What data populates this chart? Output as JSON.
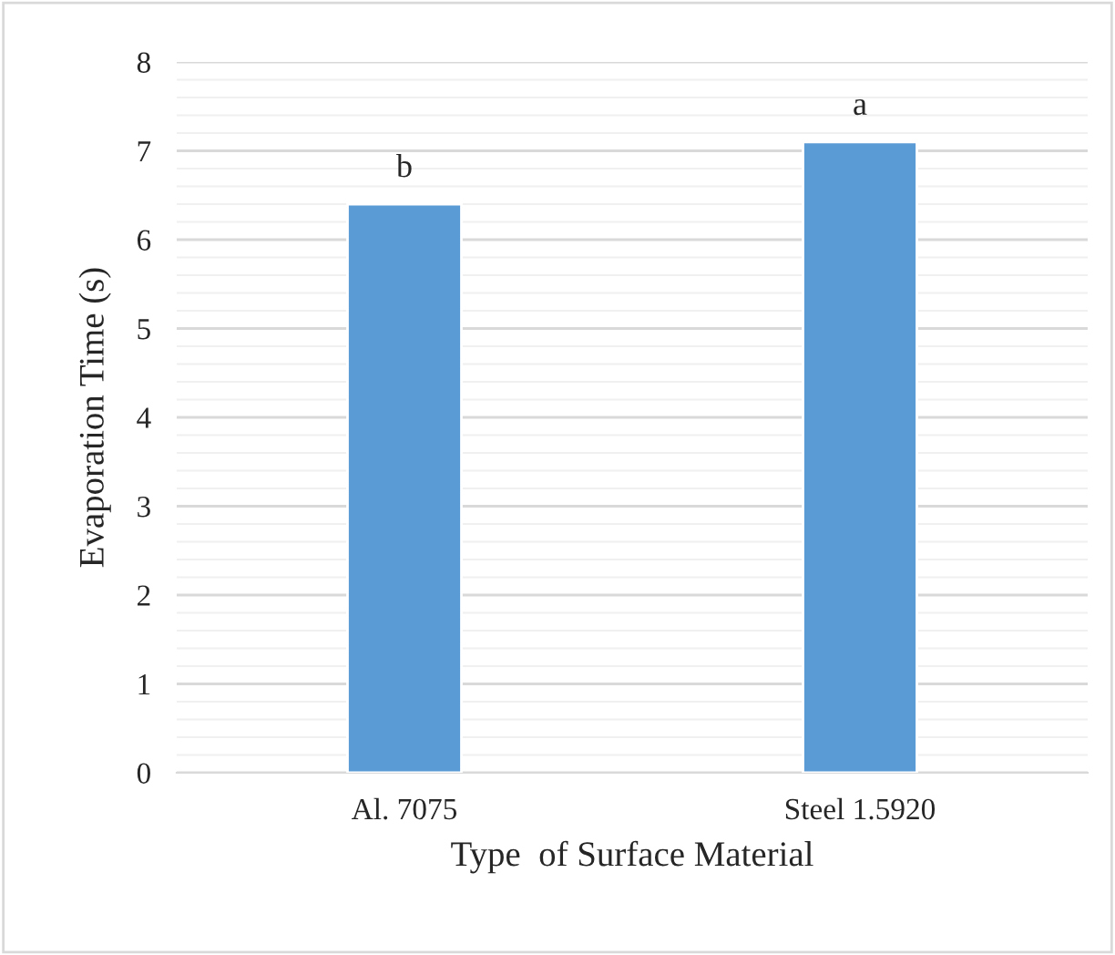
{
  "chart_data": {
    "type": "bar",
    "xlabel": "Type  of Surface Material",
    "ylabel": "Evaporation Time (s)",
    "categories": [
      "Al. 7075",
      "Steel 1.5920"
    ],
    "values": [
      6.4,
      7.1
    ],
    "color": "#5b9bd5",
    "ylim": [
      0,
      8
    ],
    "yticks": [
      0,
      1,
      2,
      3,
      4,
      5,
      6,
      7,
      8
    ],
    "grid": true,
    "annotations": [
      {
        "text": "b",
        "x": "Al. 7075",
        "y": 6.4
      },
      {
        "text": "a",
        "x": "Steel 1.5920",
        "y": 7.1
      }
    ]
  }
}
